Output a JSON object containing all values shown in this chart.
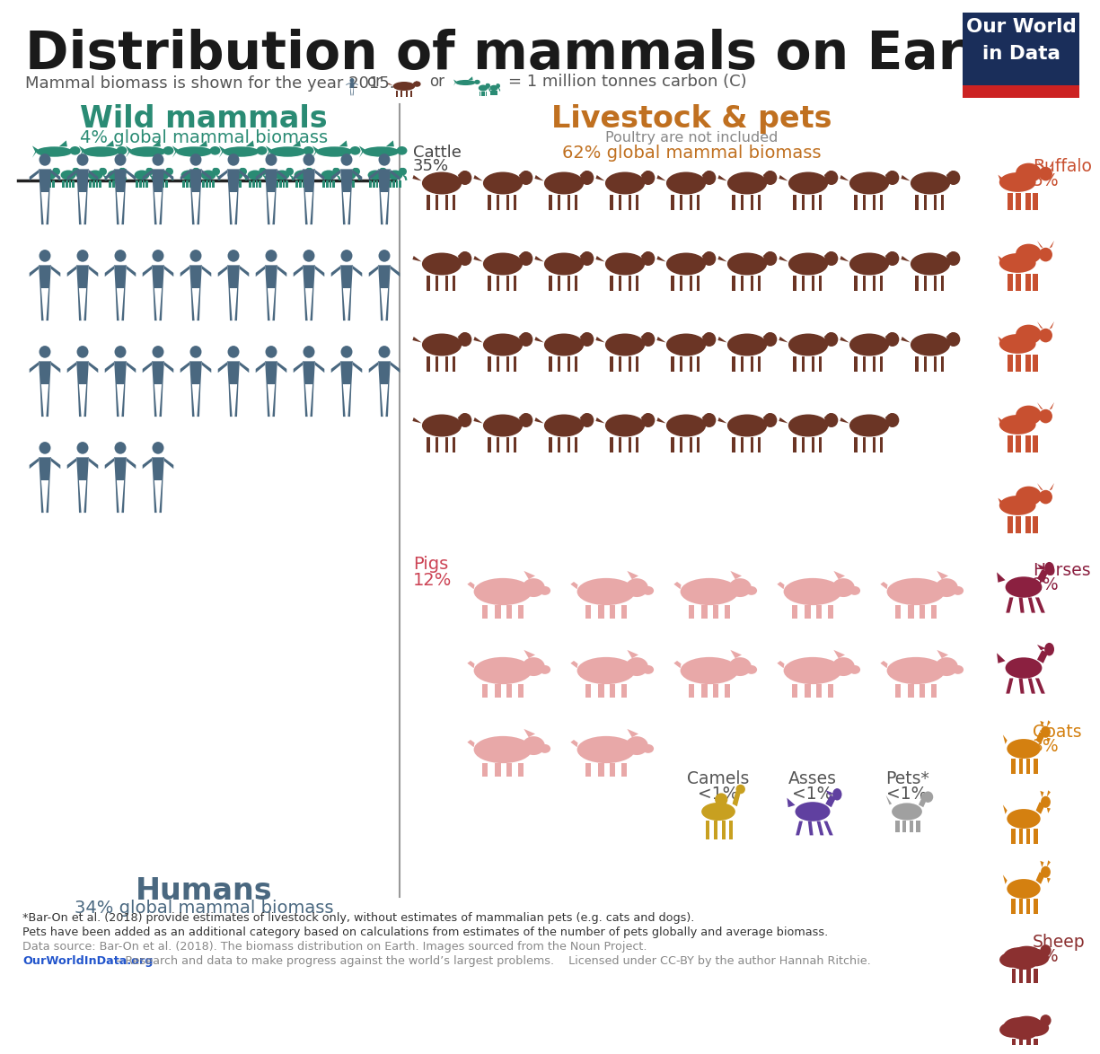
{
  "title": "Distribution of mammals on Earth",
  "subtitle_left": "Mammal biomass is shown for the year 2015.",
  "subtitle_right": "= 1 million tonnes carbon (C)",
  "bg_color": "#ffffff",
  "title_color": "#1a1a1a",
  "wild_color": "#2a8b74",
  "human_color": "#4a6880",
  "cattle_color": "#6b3525",
  "cattle_color_light": "#c07050",
  "pig_color": "#e8a8a8",
  "pig_color_dark": "#d08888",
  "buffalo_color": "#c85030",
  "horse_color": "#8b2040",
  "goat_color": "#d48010",
  "sheep_color": "#8b3030",
  "camel_color": "#c8a020",
  "ass_color": "#6040a0",
  "pet_color": "#a0a0a0",
  "livestock_color": "#c07020",
  "wild_label": "Wild mammals",
  "wild_sub": "4% global mammal biomass",
  "human_label": "Humans",
  "human_sub": "34% global mammal biomass",
  "livestock_label": "Livestock & pets",
  "livestock_sub": "Poultry are not included",
  "livestock_sub2": "62% global mammal biomass",
  "cattle_label": "Cattle",
  "cattle_pct": "35%",
  "buffalo_label": "Buffalo",
  "buffalo_pct": "5%",
  "horse_label": "Horses",
  "horse_pct": "2%",
  "goat_label": "Goats",
  "goat_pct": "3%",
  "sheep_label": "Sheep",
  "sheep_pct": "3%",
  "camel_label": "Camels",
  "camel_pct": "<1%",
  "ass_label": "Asses",
  "ass_pct": "<1%",
  "pig_label": "Pigs",
  "pig_pct": "12%",
  "pet_label": "Pets*",
  "pet_pct": "<1%",
  "footnote1": "*Bar-On et al. (2018) provide estimates of livestock only, without estimates of mammalian pets (e.g. cats and dogs).",
  "footnote2": "Pets have been added as an additional category based on calculations from estimates of the number of pets globally and average biomass.",
  "footnote3": "Data source: Bar-On et al. (2018). The biomass distribution on Earth. Images sourced from the Noun Project.",
  "footnote4_link": "OurWorldInData.org",
  "footnote4_rest": " – Research and data to make progress against the world’s largest problems.    Licensed under CC-BY by the author Hannah Ritchie.",
  "owid_box_color": "#1a2e5a",
  "owid_red": "#cc2222",
  "human_count": 34,
  "human_cols": 10,
  "wild_groups": 8,
  "cattle_count": 35,
  "cattle_cols": 9,
  "buffalo_count": 5,
  "horse_count": 2,
  "goat_count": 3,
  "sheep_count": 3,
  "pig_count": 12,
  "pig_cols": 5
}
